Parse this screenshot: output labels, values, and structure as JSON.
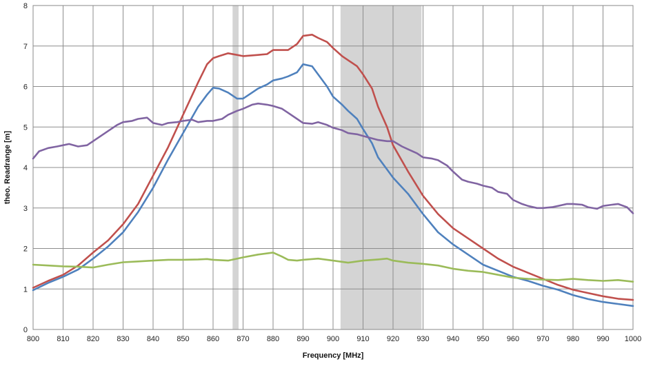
{
  "chart_data": {
    "type": "line",
    "title": "",
    "xlabel": "Frequency [MHz]",
    "ylabel": "theo. Readrange [m]",
    "xlim": [
      800,
      1000
    ],
    "ylim": [
      0,
      8
    ],
    "xticks": [
      800,
      810,
      820,
      830,
      840,
      850,
      860,
      870,
      880,
      890,
      900,
      910,
      920,
      930,
      940,
      950,
      960,
      970,
      980,
      990,
      1000
    ],
    "yticks": [
      0,
      1,
      2,
      3,
      4,
      5,
      6,
      7,
      8
    ],
    "grid": true,
    "legend": "none",
    "shaded_bands": [
      {
        "x0": 866.5,
        "x1": 868.5,
        "color": "#d4d4d4"
      },
      {
        "x0": 902.5,
        "x1": 929.5,
        "color": "#d4d4d4"
      }
    ],
    "series": [
      {
        "color": "#c0504d",
        "x": [
          800,
          805,
          810,
          815,
          820,
          825,
          830,
          835,
          840,
          845,
          850,
          855,
          858,
          860,
          862,
          865,
          868,
          870,
          875,
          878,
          880,
          885,
          888,
          890,
          893,
          895,
          898,
          900,
          903,
          905,
          908,
          910,
          913,
          915,
          918,
          920,
          925,
          930,
          935,
          940,
          945,
          950,
          955,
          960,
          965,
          970,
          975,
          980,
          985,
          990,
          995,
          1000
        ],
        "y": [
          1.03,
          1.2,
          1.35,
          1.58,
          1.9,
          2.2,
          2.6,
          3.1,
          3.8,
          4.5,
          5.3,
          6.1,
          6.55,
          6.7,
          6.75,
          6.82,
          6.78,
          6.75,
          6.78,
          6.8,
          6.9,
          6.9,
          7.05,
          7.25,
          7.28,
          7.2,
          7.1,
          6.95,
          6.75,
          6.65,
          6.5,
          6.3,
          5.95,
          5.5,
          5.0,
          4.55,
          3.9,
          3.3,
          2.85,
          2.5,
          2.25,
          2.0,
          1.75,
          1.55,
          1.4,
          1.25,
          1.1,
          0.98,
          0.9,
          0.82,
          0.76,
          0.73
        ]
      },
      {
        "color": "#4f81bd",
        "x": [
          800,
          805,
          810,
          815,
          820,
          825,
          830,
          835,
          840,
          845,
          850,
          855,
          858,
          860,
          862,
          865,
          868,
          870,
          873,
          875,
          878,
          880,
          883,
          885,
          888,
          890,
          893,
          895,
          898,
          900,
          903,
          905,
          908,
          910,
          913,
          915,
          918,
          920,
          925,
          930,
          935,
          940,
          945,
          950,
          955,
          960,
          965,
          970,
          975,
          980,
          985,
          990,
          995,
          1000
        ],
        "y": [
          0.97,
          1.15,
          1.3,
          1.48,
          1.75,
          2.05,
          2.4,
          2.9,
          3.5,
          4.2,
          4.85,
          5.5,
          5.8,
          5.97,
          5.95,
          5.85,
          5.7,
          5.7,
          5.85,
          5.95,
          6.05,
          6.15,
          6.2,
          6.25,
          6.35,
          6.55,
          6.5,
          6.3,
          6.0,
          5.75,
          5.55,
          5.4,
          5.2,
          4.95,
          4.6,
          4.25,
          3.95,
          3.75,
          3.35,
          2.85,
          2.4,
          2.1,
          1.85,
          1.6,
          1.45,
          1.3,
          1.2,
          1.08,
          0.98,
          0.85,
          0.75,
          0.68,
          0.63,
          0.58
        ]
      },
      {
        "color": "#8064a2",
        "x": [
          800,
          802,
          805,
          808,
          810,
          812,
          815,
          818,
          820,
          822,
          825,
          828,
          830,
          833,
          835,
          838,
          840,
          843,
          845,
          848,
          850,
          853,
          855,
          858,
          860,
          863,
          865,
          868,
          870,
          873,
          875,
          878,
          880,
          883,
          885,
          888,
          890,
          893,
          895,
          898,
          900,
          903,
          905,
          908,
          910,
          913,
          915,
          918,
          920,
          923,
          925,
          928,
          930,
          933,
          935,
          938,
          940,
          943,
          945,
          948,
          950,
          953,
          955,
          958,
          960,
          963,
          965,
          968,
          970,
          973,
          975,
          978,
          980,
          983,
          985,
          988,
          990,
          993,
          995,
          998,
          1000
        ],
        "y": [
          4.22,
          4.4,
          4.48,
          4.52,
          4.55,
          4.58,
          4.52,
          4.55,
          4.65,
          4.75,
          4.9,
          5.05,
          5.12,
          5.15,
          5.2,
          5.23,
          5.1,
          5.05,
          5.1,
          5.12,
          5.15,
          5.18,
          5.12,
          5.15,
          5.15,
          5.2,
          5.3,
          5.4,
          5.45,
          5.55,
          5.58,
          5.55,
          5.52,
          5.45,
          5.35,
          5.2,
          5.1,
          5.08,
          5.12,
          5.05,
          4.98,
          4.92,
          4.85,
          4.82,
          4.78,
          4.72,
          4.68,
          4.65,
          4.65,
          4.52,
          4.45,
          4.35,
          4.25,
          4.22,
          4.18,
          4.05,
          3.9,
          3.7,
          3.65,
          3.6,
          3.55,
          3.5,
          3.4,
          3.35,
          3.2,
          3.1,
          3.05,
          3.0,
          3.0,
          3.02,
          3.05,
          3.1,
          3.1,
          3.08,
          3.02,
          2.98,
          3.05,
          3.08,
          3.1,
          3.02,
          2.87
        ]
      },
      {
        "color": "#9bbb59",
        "x": [
          800,
          805,
          810,
          815,
          820,
          825,
          830,
          835,
          840,
          845,
          850,
          855,
          858,
          860,
          865,
          870,
          875,
          880,
          883,
          885,
          888,
          890,
          895,
          900,
          905,
          910,
          915,
          918,
          920,
          925,
          930,
          935,
          940,
          945,
          950,
          955,
          960,
          965,
          970,
          975,
          980,
          985,
          990,
          995,
          1000
        ],
        "y": [
          1.6,
          1.58,
          1.56,
          1.55,
          1.53,
          1.6,
          1.66,
          1.68,
          1.7,
          1.72,
          1.72,
          1.73,
          1.74,
          1.72,
          1.7,
          1.78,
          1.85,
          1.9,
          1.8,
          1.72,
          1.7,
          1.72,
          1.75,
          1.7,
          1.65,
          1.7,
          1.73,
          1.75,
          1.7,
          1.65,
          1.62,
          1.58,
          1.5,
          1.45,
          1.42,
          1.35,
          1.28,
          1.25,
          1.23,
          1.22,
          1.25,
          1.22,
          1.2,
          1.22,
          1.18
        ]
      }
    ]
  }
}
